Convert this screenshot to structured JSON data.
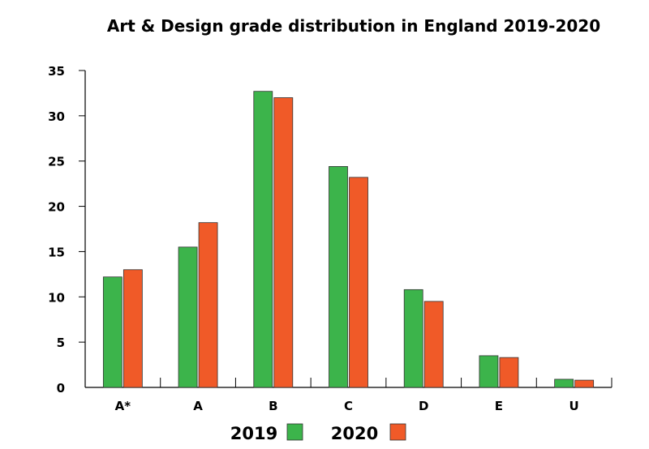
{
  "chart_data": {
    "type": "bar",
    "title": "Art & Design grade distribution in England 2019-2020",
    "categories": [
      "A*",
      "A",
      "B",
      "C",
      "D",
      "E",
      "U"
    ],
    "series": [
      {
        "name": "2019",
        "color": "#3cb44b",
        "values": [
          12.2,
          15.5,
          32.7,
          24.4,
          10.8,
          3.5,
          0.9
        ]
      },
      {
        "name": "2020",
        "color": "#f05a28",
        "values": [
          13.0,
          18.2,
          32.0,
          23.2,
          9.5,
          3.3,
          0.8
        ]
      }
    ],
    "ylim": [
      0,
      35
    ],
    "yticks": [
      0,
      5,
      10,
      15,
      20,
      25,
      30,
      35
    ],
    "grid": false,
    "legend_position": "bottom-center"
  }
}
